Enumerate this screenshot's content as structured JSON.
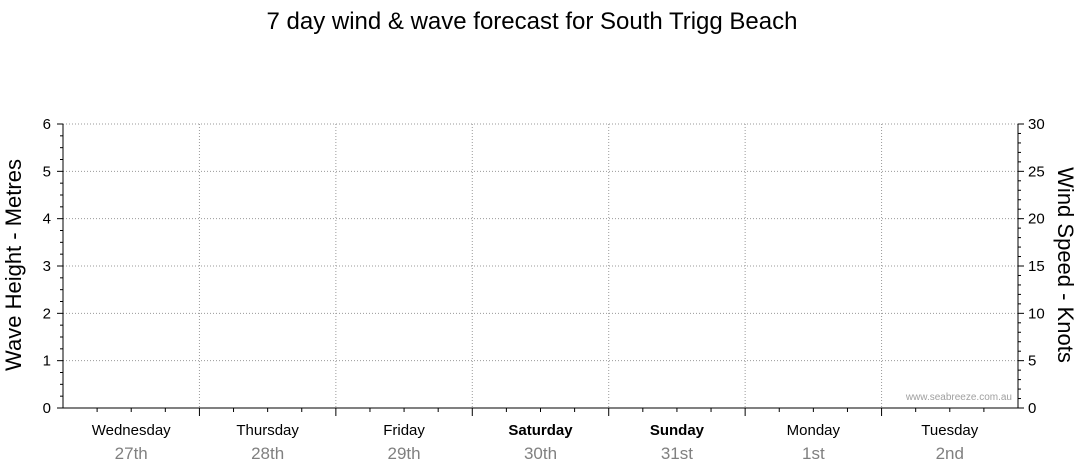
{
  "chart_data": {
    "type": "line",
    "title": "7 day wind & wave forecast for South Trigg Beach",
    "ylabel_left": "Wave Height - Metres",
    "ylabel_right": "Wind Speed - Knots",
    "y_left": {
      "lim": [
        0,
        6
      ],
      "ticks": [
        "0",
        "1",
        "2",
        "3",
        "4",
        "5",
        "6"
      ]
    },
    "y_right": {
      "lim": [
        0,
        30
      ],
      "ticks": [
        "0",
        "5",
        "10",
        "15",
        "20",
        "25",
        "30"
      ]
    },
    "grid": true,
    "days": [
      {
        "day": "Wednesday",
        "date": "27th",
        "weekend": false
      },
      {
        "day": "Thursday",
        "date": "28th",
        "weekend": false
      },
      {
        "day": "Friday",
        "date": "29th",
        "weekend": false
      },
      {
        "day": "Saturday",
        "date": "30th",
        "weekend": true
      },
      {
        "day": "Sunday",
        "date": "31st",
        "weekend": true
      },
      {
        "day": "Monday",
        "date": "1st",
        "weekend": false
      },
      {
        "day": "Tuesday",
        "date": "2nd",
        "weekend": false
      }
    ],
    "series": [],
    "watermark": "www.seabreeze.com.au"
  }
}
